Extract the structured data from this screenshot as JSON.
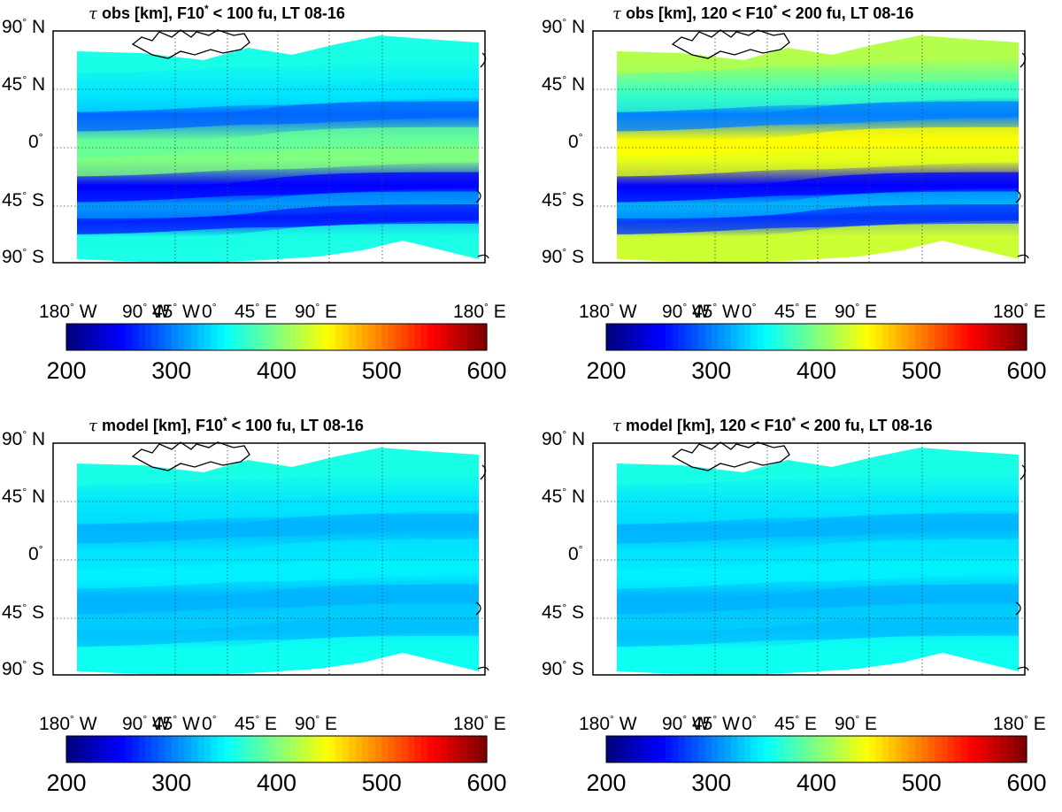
{
  "figure": {
    "panels": [
      {
        "title_sym": "τ",
        "title_text": " obs [km], F10",
        "title_sup": "*",
        "title_rest": " < 100 fu, LT 08-16",
        "style": "obs_low"
      },
      {
        "title_sym": "τ",
        "title_text": " obs [km], 120 < F10",
        "title_sup": "*",
        "title_rest": " < 200 fu, LT 08-16",
        "style": "obs_high"
      },
      {
        "title_sym": "τ",
        "title_text": " model [km], F10",
        "title_sup": "*",
        "title_rest": " < 100 fu, LT 08-16",
        "style": "model"
      },
      {
        "title_sym": "τ",
        "title_text": " model [km], 120 < F10",
        "title_sup": "*",
        "title_rest": " < 200 fu, LT 08-16",
        "style": "model"
      }
    ],
    "lat_labels": [
      "90",
      "45",
      "0",
      "45",
      "90"
    ],
    "lat_suffix": [
      " N",
      " N",
      "",
      " S",
      " S"
    ],
    "lon_labels": [
      "180",
      "90",
      "45",
      "0",
      "45",
      "90",
      "180"
    ],
    "lon_suffix": [
      " W",
      " W",
      " W",
      "",
      " E",
      " E",
      " E"
    ],
    "degree_mark": "°",
    "colorbar_ticks": [
      "200",
      "300",
      "400",
      "500",
      "600"
    ]
  },
  "chart_data": [
    {
      "type": "heatmap",
      "title": "τ obs [km], F10* < 100 fu, LT 08-16",
      "x_ticks": [
        "180° W",
        "90° W",
        "45° W",
        "0°",
        "45° E",
        "90° E",
        "180° E"
      ],
      "y_ticks": [
        "90° N",
        "45° N",
        "0°",
        "45° S",
        "90° S"
      ],
      "colorbar": {
        "min": 200,
        "max": 600,
        "ticks": [
          200,
          300,
          400,
          500,
          600
        ],
        "colormap": "jet"
      },
      "bands_lat_value": [
        [
          70,
          360
        ],
        [
          40,
          340
        ],
        [
          25,
          290
        ],
        [
          5,
          390
        ],
        [
          -10,
          400
        ],
        [
          -30,
          250
        ],
        [
          -45,
          310
        ],
        [
          -55,
          260
        ],
        [
          -70,
          360
        ]
      ]
    },
    {
      "type": "heatmap",
      "title": "τ obs [km], 120 < F10* < 200 fu, LT 08-16",
      "x_ticks": [
        "180° W",
        "90° W",
        "45° W",
        "0°",
        "45° E",
        "90° E",
        "180° E"
      ],
      "y_ticks": [
        "90° N",
        "45° N",
        "0°",
        "45° S",
        "90° S"
      ],
      "colorbar": {
        "min": 200,
        "max": 600,
        "ticks": [
          200,
          300,
          400,
          500,
          600
        ],
        "colormap": "jet"
      },
      "bands_lat_value": [
        [
          70,
          420
        ],
        [
          40,
          370
        ],
        [
          25,
          300
        ],
        [
          5,
          450
        ],
        [
          -10,
          440
        ],
        [
          -30,
          250
        ],
        [
          -45,
          320
        ],
        [
          -55,
          270
        ],
        [
          -70,
          430
        ]
      ]
    },
    {
      "type": "heatmap",
      "title": "τ model [km], F10* < 100 fu, LT 08-16",
      "x_ticks": [
        "180° W",
        "90° W",
        "45° W",
        "0°",
        "45° E",
        "90° E",
        "180° E"
      ],
      "y_ticks": [
        "90° N",
        "45° N",
        "0°",
        "45° S",
        "90° S"
      ],
      "colorbar": {
        "min": 200,
        "max": 600,
        "ticks": [
          200,
          300,
          400,
          500,
          600
        ],
        "colormap": "jet"
      },
      "bands_lat_value": [
        [
          70,
          360
        ],
        [
          40,
          340
        ],
        [
          25,
          320
        ],
        [
          5,
          340
        ],
        [
          -10,
          345
        ],
        [
          -30,
          320
        ],
        [
          -45,
          330
        ],
        [
          -55,
          325
        ],
        [
          -70,
          355
        ]
      ]
    },
    {
      "type": "heatmap",
      "title": "τ model [km], 120 < F10* < 200 fu, LT 08-16",
      "x_ticks": [
        "180° W",
        "90° W",
        "45° W",
        "0°",
        "45° E",
        "90° E",
        "180° E"
      ],
      "y_ticks": [
        "90° N",
        "45° N",
        "0°",
        "45° S",
        "90° S"
      ],
      "colorbar": {
        "min": 200,
        "max": 600,
        "ticks": [
          200,
          300,
          400,
          500,
          600
        ],
        "colormap": "jet"
      },
      "bands_lat_value": [
        [
          70,
          360
        ],
        [
          40,
          340
        ],
        [
          25,
          320
        ],
        [
          5,
          340
        ],
        [
          -10,
          345
        ],
        [
          -30,
          320
        ],
        [
          -45,
          330
        ],
        [
          -55,
          325
        ],
        [
          -70,
          355
        ]
      ]
    }
  ]
}
